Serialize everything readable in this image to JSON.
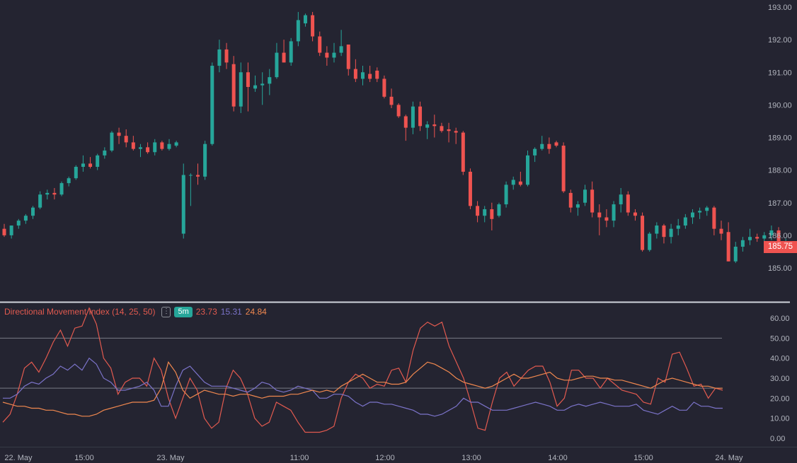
{
  "chart_data": [
    {
      "type": "candlestick",
      "ylim": [
        184.6,
        193.2
      ],
      "y_ticks": [
        "193.00",
        "192.00",
        "191.00",
        "190.00",
        "189.00",
        "188.00",
        "187.00",
        "186.00",
        "185.00"
      ],
      "last_price": "185.75",
      "colors": {
        "up": "#26a69a",
        "down": "#ef5350"
      },
      "candles": [
        [
          186.2,
          186.35,
          185.95,
          186.0
        ],
        [
          186.0,
          186.3,
          185.9,
          186.3
        ],
        [
          186.3,
          186.5,
          186.2,
          186.45
        ],
        [
          186.45,
          186.65,
          186.35,
          186.6
        ],
        [
          186.6,
          186.9,
          186.5,
          186.85
        ],
        [
          186.85,
          187.35,
          186.8,
          187.25
        ],
        [
          187.25,
          187.4,
          187.1,
          187.3
        ],
        [
          187.3,
          187.45,
          187.1,
          187.25
        ],
        [
          187.25,
          187.65,
          187.2,
          187.6
        ],
        [
          187.6,
          187.8,
          187.5,
          187.75
        ],
        [
          187.75,
          188.15,
          187.7,
          188.1
        ],
        [
          188.1,
          188.45,
          187.95,
          188.2
        ],
        [
          188.2,
          188.4,
          188.05,
          188.1
        ],
        [
          188.1,
          188.5,
          188.0,
          188.45
        ],
        [
          188.45,
          188.7,
          188.35,
          188.6
        ],
        [
          188.6,
          189.2,
          188.55,
          189.15
        ],
        [
          189.15,
          189.3,
          188.8,
          189.05
        ],
        [
          189.05,
          189.25,
          188.7,
          188.85
        ],
        [
          188.85,
          189.05,
          188.6,
          188.65
        ],
        [
          188.65,
          188.8,
          188.4,
          188.7
        ],
        [
          188.7,
          188.85,
          188.5,
          188.55
        ],
        [
          188.55,
          188.95,
          188.45,
          188.85
        ],
        [
          188.85,
          188.9,
          188.6,
          188.65
        ],
        [
          188.65,
          188.95,
          188.6,
          188.8
        ],
        [
          188.75,
          188.9,
          188.7,
          188.85
        ],
        [
          186.05,
          188.2,
          185.9,
          187.85
        ],
        [
          187.85,
          187.9,
          186.9,
          187.85
        ],
        [
          187.85,
          188.2,
          187.55,
          187.8
        ],
        [
          187.8,
          188.9,
          187.7,
          188.8
        ],
        [
          188.8,
          191.3,
          188.75,
          191.2
        ],
        [
          191.2,
          192.0,
          191.0,
          191.7
        ],
        [
          191.7,
          191.9,
          191.1,
          191.3
        ],
        [
          191.25,
          191.5,
          189.8,
          189.95
        ],
        [
          189.95,
          191.3,
          189.75,
          191.0
        ],
        [
          191.0,
          191.3,
          189.8,
          190.55
        ],
        [
          190.5,
          190.9,
          190.4,
          190.6
        ],
        [
          190.6,
          191.0,
          190.0,
          190.65
        ],
        [
          190.65,
          191.1,
          190.3,
          190.85
        ],
        [
          190.85,
          191.9,
          190.8,
          191.6
        ],
        [
          191.6,
          192.0,
          191.3,
          191.3
        ],
        [
          191.3,
          192.05,
          191.2,
          191.95
        ],
        [
          191.95,
          192.85,
          191.8,
          192.6
        ],
        [
          192.5,
          192.8,
          192.4,
          192.75
        ],
        [
          192.75,
          192.85,
          191.95,
          192.1
        ],
        [
          192.1,
          192.25,
          191.5,
          191.6
        ],
        [
          191.6,
          191.8,
          191.2,
          191.45
        ],
        [
          191.45,
          191.9,
          191.3,
          191.6
        ],
        [
          191.6,
          192.3,
          191.5,
          191.8
        ],
        [
          191.85,
          191.85,
          190.9,
          191.1
        ],
        [
          191.1,
          191.4,
          190.7,
          190.8
        ],
        [
          190.8,
          191.2,
          190.6,
          191.0
        ],
        [
          190.95,
          191.2,
          190.7,
          190.8
        ],
        [
          191.05,
          191.15,
          190.7,
          190.8
        ],
        [
          190.8,
          190.9,
          190.2,
          190.25
        ],
        [
          190.25,
          190.5,
          189.9,
          190.0
        ],
        [
          190.0,
          190.05,
          189.6,
          189.65
        ],
        [
          189.65,
          189.7,
          188.9,
          189.3
        ],
        [
          189.3,
          190.1,
          189.1,
          189.95
        ],
        [
          189.95,
          190.1,
          189.2,
          189.35
        ],
        [
          189.3,
          189.5,
          188.95,
          189.4
        ],
        [
          189.4,
          189.7,
          189.0,
          189.35
        ],
        [
          189.35,
          189.45,
          189.15,
          189.2
        ],
        [
          189.25,
          189.45,
          188.85,
          189.2
        ],
        [
          189.2,
          189.3,
          188.8,
          189.15
        ],
        [
          189.15,
          189.2,
          187.85,
          187.95
        ],
        [
          187.95,
          188.05,
          186.8,
          186.9
        ],
        [
          186.9,
          187.05,
          186.4,
          186.6
        ],
        [
          186.6,
          186.9,
          186.4,
          186.8
        ],
        [
          186.8,
          187.0,
          186.15,
          186.5
        ],
        [
          186.6,
          187.0,
          186.55,
          186.95
        ],
        [
          186.95,
          187.65,
          186.85,
          187.55
        ],
        [
          187.55,
          187.8,
          187.4,
          187.7
        ],
        [
          187.65,
          187.95,
          187.5,
          187.55
        ],
        [
          187.55,
          188.6,
          187.5,
          188.45
        ],
        [
          188.45,
          188.7,
          188.25,
          188.65
        ],
        [
          188.65,
          189.05,
          188.6,
          188.8
        ],
        [
          188.8,
          189.0,
          188.5,
          188.65
        ],
        [
          188.85,
          188.9,
          188.7,
          188.75
        ],
        [
          188.75,
          188.85,
          187.3,
          187.35
        ],
        [
          187.3,
          187.4,
          186.7,
          186.85
        ],
        [
          186.85,
          187.05,
          186.6,
          186.95
        ],
        [
          187.0,
          187.55,
          186.9,
          187.4
        ],
        [
          187.4,
          187.65,
          186.55,
          186.7
        ],
        [
          186.7,
          186.95,
          186.0,
          186.55
        ],
        [
          186.55,
          186.8,
          186.25,
          186.45
        ],
        [
          186.45,
          187.05,
          186.25,
          186.95
        ],
        [
          186.95,
          187.45,
          186.7,
          187.25
        ],
        [
          187.25,
          187.35,
          186.6,
          186.7
        ],
        [
          186.7,
          186.8,
          186.45,
          186.6
        ],
        [
          186.6,
          186.7,
          185.5,
          185.55
        ],
        [
          185.55,
          186.1,
          185.5,
          186.05
        ],
        [
          186.05,
          186.4,
          185.9,
          186.3
        ],
        [
          186.3,
          186.35,
          185.75,
          185.95
        ],
        [
          185.95,
          186.35,
          185.75,
          186.2
        ],
        [
          186.2,
          186.5,
          186.0,
          186.3
        ],
        [
          186.3,
          186.65,
          186.2,
          186.55
        ],
        [
          186.55,
          186.8,
          186.35,
          186.7
        ],
        [
          186.7,
          186.85,
          186.5,
          186.75
        ],
        [
          186.75,
          186.9,
          186.6,
          186.85
        ],
        [
          186.85,
          186.9,
          186.0,
          186.2
        ],
        [
          186.2,
          186.45,
          185.85,
          186.05
        ],
        [
          186.1,
          186.4,
          185.2,
          185.2
        ],
        [
          185.2,
          185.8,
          185.15,
          185.65
        ],
        [
          185.65,
          185.95,
          185.5,
          185.85
        ],
        [
          185.85,
          186.2,
          185.7,
          185.95
        ],
        [
          185.95,
          186.05,
          185.8,
          185.9
        ],
        [
          185.9,
          186.1,
          185.75,
          186.0
        ],
        [
          186.0,
          186.3,
          185.85,
          186.15
        ],
        [
          186.15,
          186.25,
          185.7,
          185.75
        ],
        [
          185.75,
          185.9,
          185.65,
          185.75
        ]
      ]
    },
    {
      "type": "line",
      "title": "Directional Movement Index (14, 25, 50)",
      "timeframe": "5m",
      "values": [
        "23.73",
        "15.31",
        "24.84"
      ],
      "ylim": [
        0,
        65
      ],
      "y_ticks": [
        "60.00",
        "50.00",
        "40.00",
        "30.00",
        "20.00",
        "10.00",
        "0.00"
      ],
      "hlines": [
        50,
        25
      ],
      "x_labels": [
        "22. May",
        "15:00",
        "23. May",
        "11:00",
        "12:00",
        "13:00",
        "14:00",
        "15:00",
        "24. May"
      ],
      "series": [
        {
          "color": "#e25a4f",
          "values": [
            8,
            12,
            22,
            35,
            38,
            33,
            40,
            48,
            54,
            46,
            55,
            56,
            65,
            57,
            40,
            35,
            22,
            28,
            30,
            30,
            26,
            40,
            34,
            20,
            10,
            20,
            30,
            24,
            10,
            5,
            8,
            25,
            34,
            30,
            22,
            10,
            6,
            8,
            18,
            16,
            14,
            8,
            3,
            3,
            3,
            4,
            6,
            20,
            28,
            32,
            30,
            25,
            27,
            26,
            34,
            35,
            28,
            44,
            55,
            58,
            56,
            58,
            46,
            38,
            30,
            18,
            5,
            4,
            18,
            30,
            33,
            26,
            30,
            34,
            36,
            36,
            28,
            16,
            20,
            34,
            34,
            30,
            30,
            25,
            30,
            27,
            24,
            23,
            22,
            18,
            17,
            30,
            28,
            42,
            43,
            35,
            26,
            27,
            20,
            25,
            24
          ]
        },
        {
          "color": "#7b73c9",
          "values": [
            20,
            20,
            22,
            26,
            28,
            27,
            30,
            32,
            36,
            34,
            37,
            34,
            40,
            37,
            30,
            28,
            24,
            24,
            25,
            26,
            28,
            24,
            16,
            16,
            26,
            34,
            36,
            32,
            28,
            26,
            26,
            26,
            25,
            24,
            23,
            25,
            28,
            27,
            24,
            23,
            24,
            26,
            25,
            24,
            20,
            20,
            22,
            22,
            21,
            18,
            16,
            18,
            18,
            17,
            17,
            16,
            15,
            14,
            12,
            12,
            11,
            12,
            14,
            16,
            20,
            18,
            18,
            16,
            14,
            14,
            14,
            15,
            16,
            17,
            18,
            17,
            16,
            14,
            14,
            16,
            17,
            16,
            17,
            18,
            17,
            16,
            16,
            16,
            17,
            14,
            13,
            12,
            14,
            16,
            14,
            14,
            18,
            16,
            16,
            15,
            15
          ]
        },
        {
          "color": "#f0884f",
          "values": [
            18,
            17,
            16,
            16,
            15,
            15,
            14,
            14,
            13,
            12,
            12,
            11,
            11,
            12,
            14,
            15,
            16,
            17,
            18,
            18,
            18,
            19,
            25,
            38,
            33,
            24,
            20,
            22,
            24,
            23,
            22,
            22,
            21,
            22,
            22,
            21,
            20,
            21,
            21,
            21,
            22,
            22,
            23,
            24,
            23,
            24,
            23,
            26,
            28,
            30,
            32,
            30,
            28,
            28,
            27,
            27,
            28,
            32,
            35,
            38,
            37,
            35,
            33,
            30,
            28,
            27,
            26,
            25,
            26,
            28,
            30,
            32,
            30,
            30,
            31,
            32,
            33,
            30,
            29,
            29,
            30,
            31,
            31,
            30,
            30,
            29,
            29,
            28,
            27,
            26,
            25,
            27,
            29,
            30,
            29,
            28,
            27,
            26,
            26,
            25,
            25
          ]
        }
      ]
    }
  ]
}
